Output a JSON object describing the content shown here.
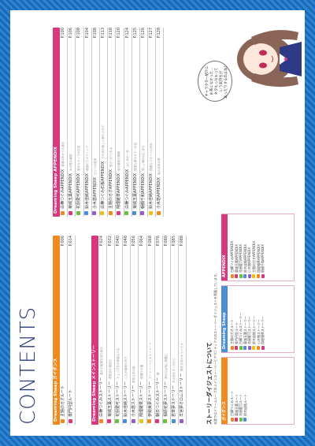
{
  "title": "CONTENTS",
  "left_column": {
    "section1": {
      "label": "Dreaming Sheep ガイダンス",
      "rows": [
        {
          "label": "主題のガオルート",
          "page": "P.006"
        },
        {
          "label": "専門円型ルート",
          "page": "P.014"
        }
      ]
    },
    "section2": {
      "label": "Dreaming Sheep メインストーリー",
      "rows": [
        {
          "label": "白樺つぐみストーリー",
          "sub": "森のお姫様を待ち続け",
          "page": "P.024"
        },
        {
          "label": "菊城玉葉ストーリー",
          "sub": "遊牧民の道続き",
          "page": "P.032"
        },
        {
          "label": "花厨愛可ストーリー",
          "sub": "ちょっぴりの幸福な人生",
          "page": "P.040"
        },
        {
          "label": "鈴木佳純ストーリー",
          "sub": "これが運命の行方",
          "page": "P.048"
        },
        {
          "label": "小木悠ストーリー",
          "sub": "夢見る羊の夜",
          "page": "P.056"
        },
        {
          "label": "翔理雑草ストーリー",
          "sub": "夜明けの鐘",
          "page": "P.064"
        },
        {
          "label": "伊勢美夢ストーリー",
          "sub": "デートシーンとキスイメージ",
          "page": "P.068"
        },
        {
          "label": "朝日つぐみストーリー",
          "sub": "夢",
          "page": "P.076"
        },
        {
          "label": "相原花夢ストーリー",
          "sub": "夢の中は常に奇麗に",
          "page": "P.080"
        },
        {
          "label": "若草夢ストーリー",
          "sub": "羊の鈴をきっかけに",
          "page": "P.085"
        },
        {
          "label": "羊宮夢オロムストーリー",
          "sub": "夢見る羊のキャンセル",
          "page": "P.088"
        }
      ]
    }
  },
  "right_column": {
    "section": {
      "label": "Dreaming Sheep APPENDIX",
      "rows": [
        {
          "label": "白樺つぐみAPPENDIX",
          "sub": "普通の羊からの提示",
          "page": "P.100"
        },
        {
          "label": "菊城玉葉APPENDIX",
          "sub": "木の陰の秘密",
          "page": "P.106"
        },
        {
          "label": "花厨愛可APPENDIX",
          "sub": "夏のキャンプのお話",
          "page": "P.108"
        },
        {
          "label": "鈴木佳純APPENDIX",
          "sub": "偶然のウエディング",
          "page": "P.104"
        },
        {
          "label": "小木悠APPENDIX",
          "sub": "ひとつの結末",
          "page": "P.108"
        },
        {
          "label": "白樺つぐみ石板APPENDIX",
          "sub": "その先の新しい夢のカタチ",
          "page": "P.113"
        },
        {
          "label": "主題のガオAPPENDIX",
          "sub": "惹きつけられる",
          "page": "P.118"
        },
        {
          "label": "翔理雑草APPENDIX",
          "sub": "私の秘密の関係",
          "page": "P.120"
        },
        {
          "label": "白樺つぐみAPPENDIX",
          "sub": "はじめの一歩",
          "page": "P.124"
        },
        {
          "label": "菊城玉葉APPENDIX",
          "sub": "穏健な夏のサマーの話",
          "page": "P.125"
        },
        {
          "label": "朝顔千和APPENDIX",
          "sub": "新しい朝のはじまり",
          "page": "P.126"
        },
        {
          "label": "鈴木佳純APPENDIX",
          "sub": "穏健なスタートの別れ",
          "page": "P.127"
        },
        {
          "label": "小木悠APPENDIX",
          "sub": "私の未来の夢",
          "page": "P.128"
        }
      ]
    }
  },
  "speech_bubble": {
    "lines": [
      "キャラクター紹介に",
      "お茶になかった…",
      "ネタもっちゃって",
      "いう気持ちが",
      "あったりするのよね！"
    ]
  },
  "story_digest": {
    "title": "ストーリーダイジェストについて",
    "description": "本書ではドリームシープのメインストーリーとアペンディクスのストーリーダイジェストを掲載しています。",
    "boxes": [
      {
        "label": "ガイダンス",
        "color": "#ef8a1e",
        "items": [
          "白樺つぐみルート",
          "菊城玉葉ルート",
          "花厨愛可ルート",
          "鈴木佳純ルート"
        ]
      },
      {
        "label": "Dreaming Sheep",
        "color": "#4a8fd6",
        "items": [
          "主題のガオルート",
          "専門円型ルート",
          "白樺つぐみストーリー",
          "菊城玉葉ストーリー",
          "花厨愛可ストーリー",
          "鈴木佳純ストーリー",
          "小木悠ストーリー",
          "翔理雑草ストーリー"
        ]
      },
      {
        "label": "APPENDIX",
        "color": "#d8387d",
        "items": [
          "白樺つぐみAPPENDIX",
          "菊城玉葉APPENDIX",
          "花厨愛可APPENDIX",
          "鈴木佳純APPENDIX",
          "小木悠APPENDIX",
          "主題のガオAPPENDIX",
          "翔理雑草APPENDIX",
          "朝顔千和APPENDIX"
        ]
      }
    ]
  },
  "colors": {
    "frame": "#1f74c4",
    "orange": "#ef8a1e",
    "pink": "#d8387d",
    "blue": "#4a8fd6",
    "title": "#2a3a7a"
  },
  "marker_colors": [
    "#ef8a1e",
    "#d8387d",
    "#6bbf3a",
    "#4a8fd6",
    "#9a5bc9",
    "#e8c21a"
  ],
  "icons": {
    "character": "chibi-girl-illustration"
  }
}
